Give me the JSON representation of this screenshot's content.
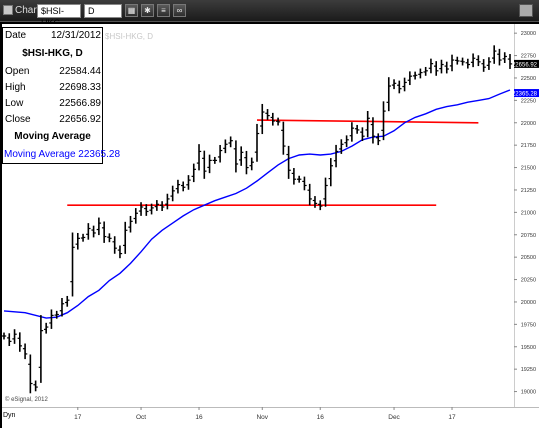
{
  "window": {
    "title": "Chart",
    "symbol_value": "$HSI-HKG",
    "interval_value": "D",
    "toolbar_icons": [
      "grid-icon",
      "settings-icon",
      "lines-icon",
      "link-icon"
    ]
  },
  "data_window": {
    "date_label": "Date",
    "date_value": "12/31/2012",
    "symbol_line": "$HSI-HKG, D",
    "open_label": "Open",
    "open_value": "22584.44",
    "high_label": "High",
    "high_value": "22698.33",
    "low_label": "Low",
    "low_value": "22566.89",
    "close_label": "Close",
    "close_value": "22656.92",
    "ma_title": "Moving Average",
    "ma_row": "Moving Average 22365.28"
  },
  "watermark": "$HSI-HKG, D",
  "copyright": "© eSignal, 2012",
  "corner_label": "Dyn",
  "chart_data": {
    "type": "line",
    "title": "$HSI-HKG, D",
    "price_tag": "22656.92",
    "ma_tag": "22365.28",
    "ylim": [
      18850,
      23080
    ],
    "y_ticks": [
      23000,
      22750,
      22500,
      22250,
      22000,
      21750,
      21500,
      21250,
      21000,
      20750,
      20500,
      20250,
      20000,
      19750,
      19500,
      19250,
      19000
    ],
    "x_ticks": [
      {
        "label": "17",
        "index": 14
      },
      {
        "label": "Oct",
        "index": 26
      },
      {
        "label": "16",
        "index": 37
      },
      {
        "label": "Nov",
        "index": 49
      },
      {
        "label": "16",
        "index": 60
      },
      {
        "label": "Dec",
        "index": 74
      },
      {
        "label": "17",
        "index": 85
      }
    ],
    "n_bars": 97,
    "colors": {
      "bars": "#000000",
      "ma": "#0000ff",
      "trendline": "#ff0000"
    },
    "close": [
      19620,
      19560,
      19640,
      19510,
      19420,
      19090,
      19050,
      19680,
      19720,
      19850,
      19860,
      19980,
      20020,
      20610,
      20710,
      20720,
      20820,
      20770,
      20880,
      20730,
      20710,
      20600,
      20540,
      20800,
      20900,
      20990,
      21060,
      21010,
      21050,
      21090,
      21060,
      21150,
      21240,
      21310,
      21280,
      21360,
      21480,
      21680,
      21460,
      21580,
      21580,
      21690,
      21760,
      21800,
      21540,
      21670,
      21500,
      21560,
      21880,
      22120,
      22080,
      22020,
      22010,
      21740,
      21470,
      21370,
      21370,
      21300,
      21150,
      21100,
      21070,
      21300,
      21520,
      21680,
      21760,
      21810,
      21940,
      21920,
      21850,
      22050,
      21850,
      21800,
      22130,
      22410,
      22440,
      22380,
      22450,
      22520,
      22530,
      22560,
      22580,
      22660,
      22580,
      22650,
      22600,
      22700,
      22690,
      22680,
      22650,
      22720,
      22680,
      22620,
      22680,
      22800,
      22700,
      22740,
      22656.92
    ],
    "series": [
      {
        "name": "Moving Average",
        "x": [
          0,
          4,
          8,
          10,
          12,
          14,
          16,
          18,
          20,
          22,
          24,
          26,
          28,
          30,
          32,
          34,
          36,
          38,
          40,
          42,
          44,
          46,
          48,
          50,
          52,
          54,
          56,
          58,
          60,
          62,
          64,
          66,
          68,
          70,
          72,
          74,
          76,
          78,
          80,
          82,
          84,
          86,
          88,
          90,
          92,
          94,
          96
        ],
        "values": [
          19900,
          19880,
          19820,
          19830,
          19880,
          19960,
          20060,
          20130,
          20240,
          20320,
          20430,
          20560,
          20700,
          20800,
          20880,
          20960,
          21030,
          21080,
          21130,
          21170,
          21210,
          21270,
          21350,
          21440,
          21530,
          21600,
          21640,
          21650,
          21640,
          21650,
          21680,
          21740,
          21810,
          21840,
          21850,
          21910,
          22000,
          22060,
          22100,
          22150,
          22180,
          22200,
          22230,
          22250,
          22270,
          22320,
          22365.28
        ]
      }
    ],
    "trendlines": [
      {
        "x": [
          48,
          90
        ],
        "y": [
          22030,
          22000
        ]
      },
      {
        "x": [
          12,
          82
        ],
        "y": [
          21080,
          21080
        ]
      }
    ]
  }
}
